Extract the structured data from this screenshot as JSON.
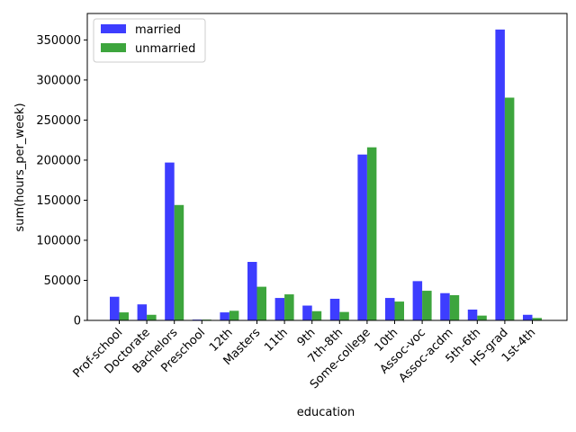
{
  "chart_data": {
    "type": "bar",
    "xlabel": "education",
    "ylabel": "sum(hours_per_week)",
    "ylim": [
      0,
      383000
    ],
    "yticks": [
      0,
      50000,
      100000,
      150000,
      200000,
      250000,
      300000,
      350000
    ],
    "categories": [
      "Prof-school",
      "Doctorate",
      "Bachelors",
      "Preschool",
      "12th",
      "Masters",
      "11th",
      "9th",
      "7th-8th",
      "Some-college",
      "10th",
      "Assoc-voc",
      "Assoc-acdm",
      "5th-6th",
      "HS-grad",
      "1st-4th"
    ],
    "series": [
      {
        "name": "married",
        "color": "#3333ff",
        "values": [
          29500,
          20000,
          197000,
          1000,
          10000,
          73000,
          28000,
          18500,
          27000,
          207000,
          28000,
          49000,
          34000,
          13500,
          363000,
          7000
        ]
      },
      {
        "name": "unmarried",
        "color": "#33a033",
        "values": [
          10000,
          7000,
          144000,
          1000,
          12000,
          42000,
          32500,
          11500,
          10500,
          216000,
          23500,
          37000,
          31500,
          6000,
          278000,
          3000
        ]
      }
    ],
    "legend_position": "upper-left",
    "grid": false
  }
}
